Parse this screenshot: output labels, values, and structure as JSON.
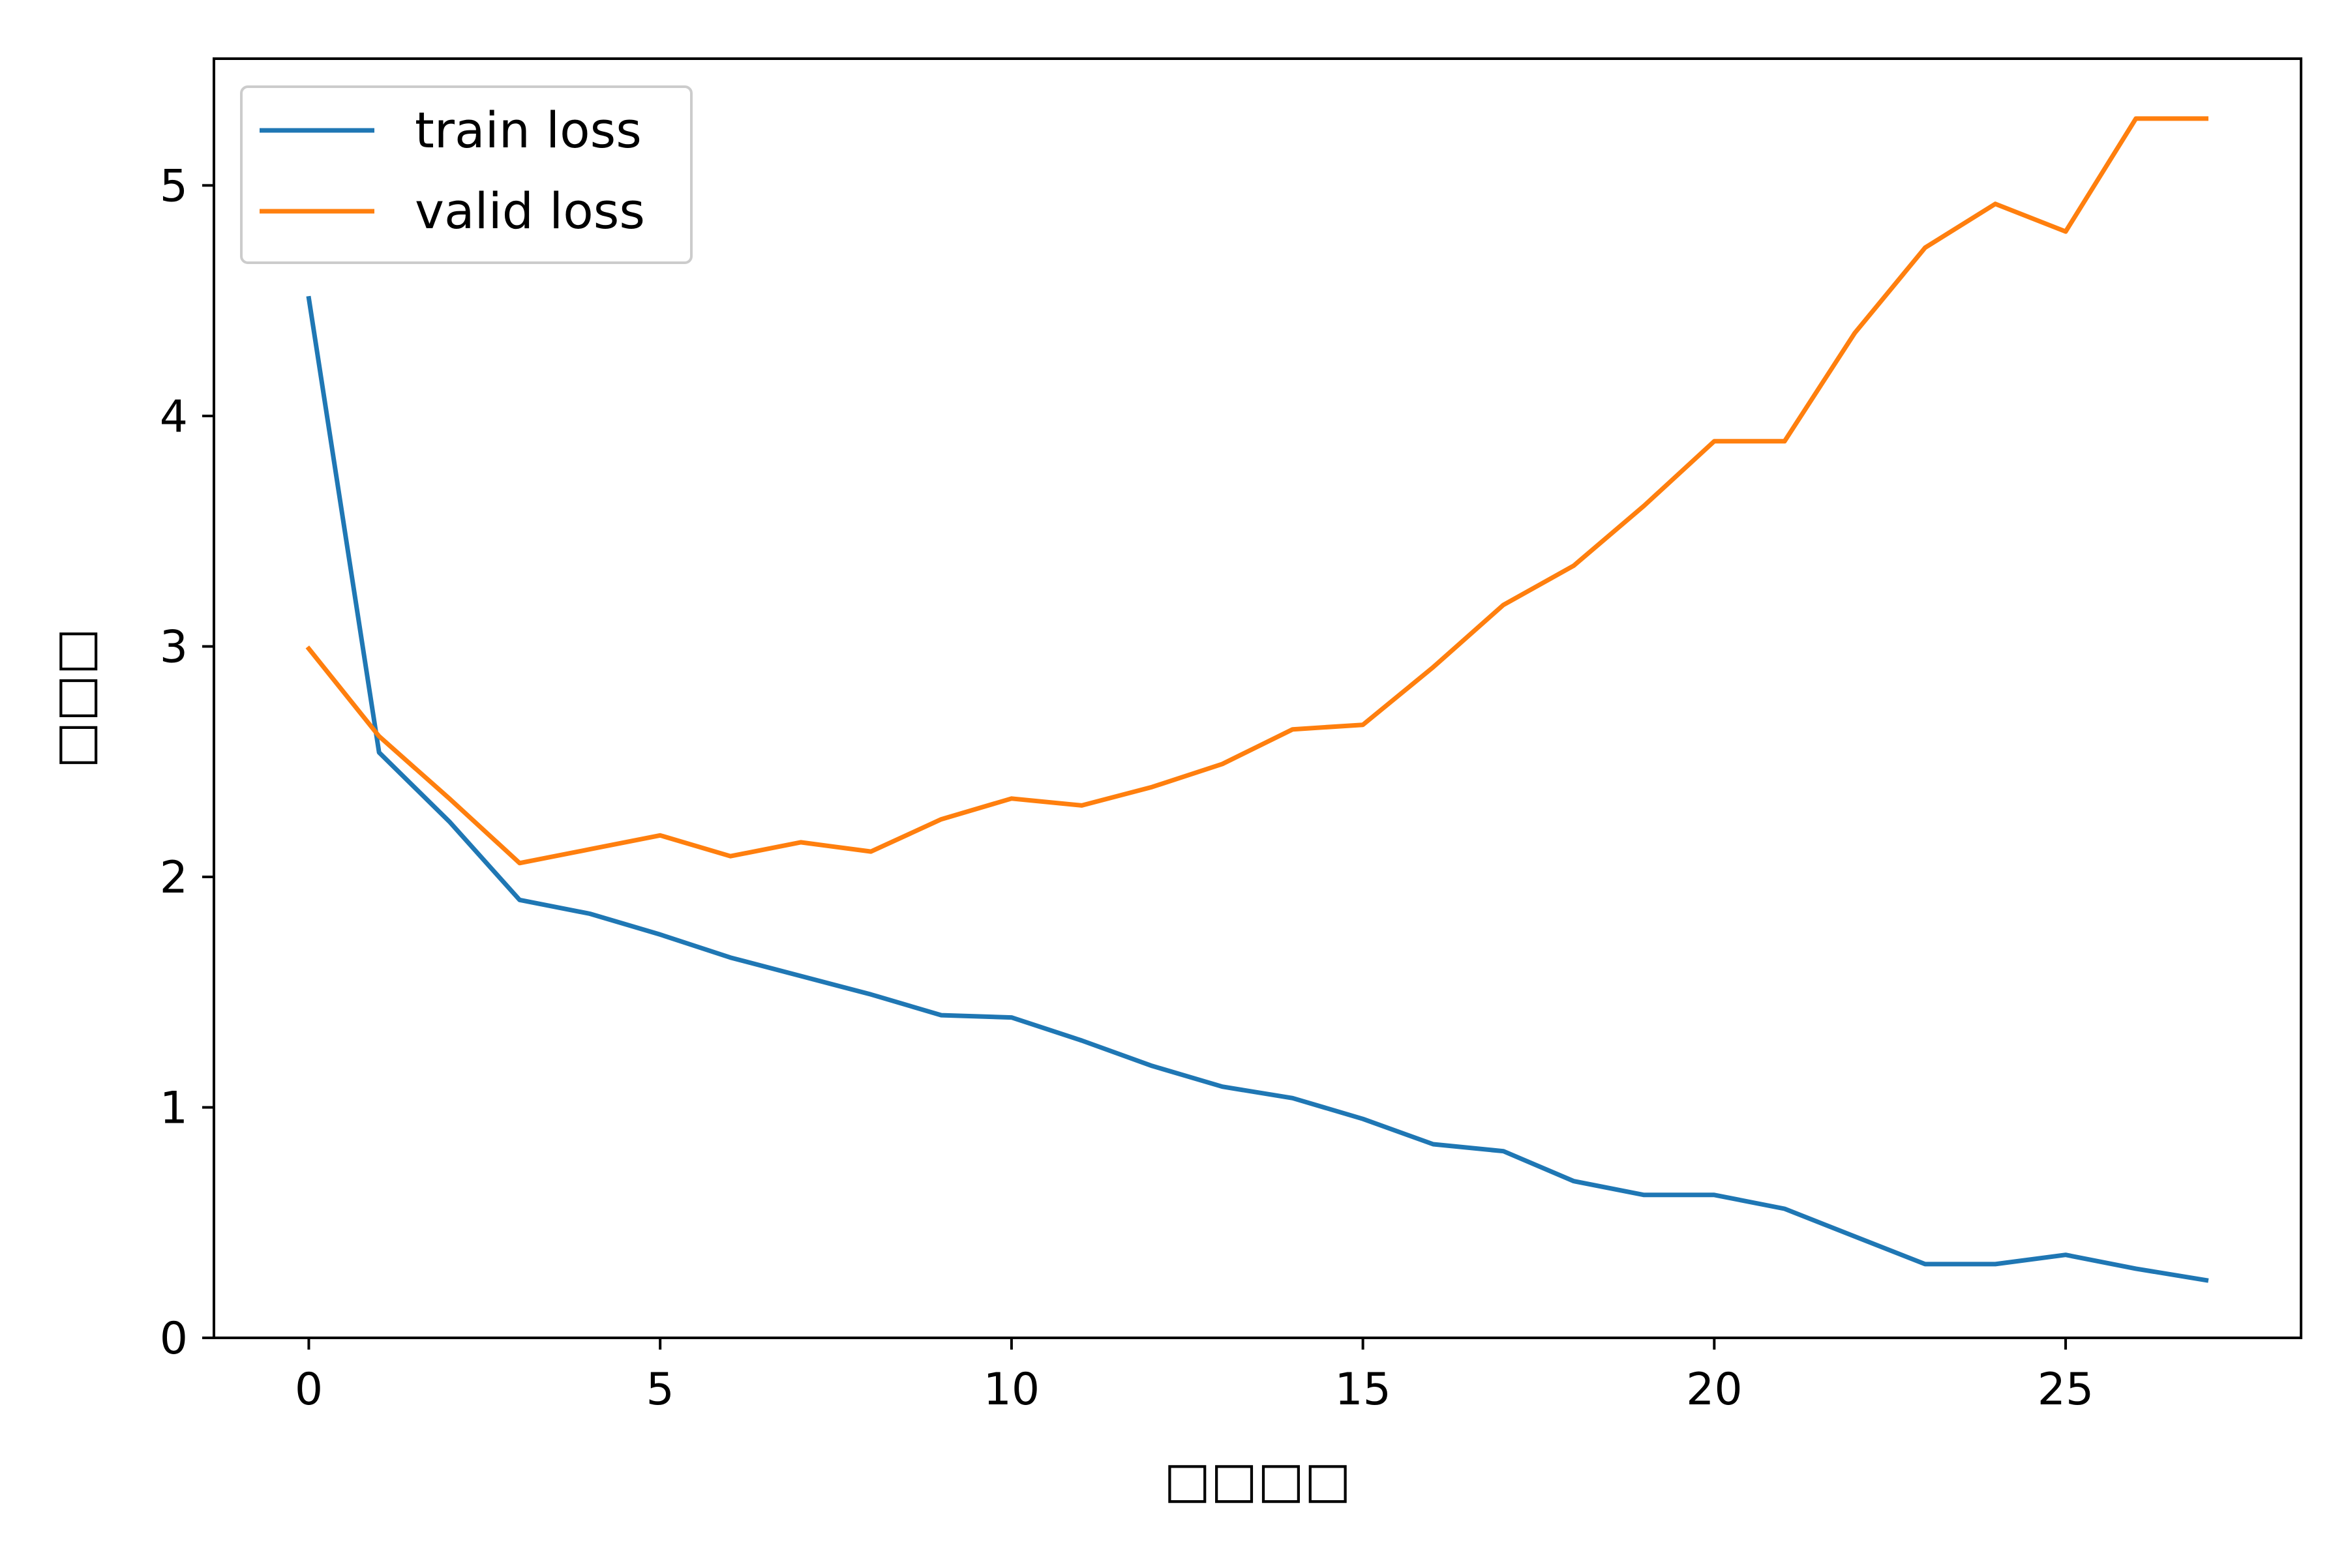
{
  "chart_data": {
    "type": "line",
    "title": "",
    "xlabel": "□□□□",
    "ylabel": "□□□",
    "xlim": [
      -1.35,
      28.35
    ],
    "ylim": [
      0,
      5.55
    ],
    "xticks": [
      0,
      5,
      10,
      15,
      20,
      25
    ],
    "yticks": [
      0,
      1,
      2,
      3,
      4,
      5
    ],
    "grid": false,
    "legend_position": "upper-left",
    "x": [
      0,
      1,
      2,
      3,
      4,
      5,
      6,
      7,
      8,
      9,
      10,
      11,
      12,
      13,
      14,
      15,
      16,
      17,
      18,
      19,
      20,
      21,
      22,
      23,
      24,
      25,
      26,
      27
    ],
    "series": [
      {
        "name": "train loss",
        "color": "#1f77b4",
        "values": [
          4.51,
          2.54,
          2.24,
          1.9,
          1.84,
          1.75,
          1.65,
          1.57,
          1.49,
          1.4,
          1.39,
          1.29,
          1.18,
          1.09,
          1.04,
          0.95,
          0.84,
          0.81,
          0.68,
          0.62,
          0.62,
          0.56,
          0.44,
          0.32,
          0.32,
          0.36,
          0.3,
          0.25
        ]
      },
      {
        "name": "valid loss",
        "color": "#ff7f0e",
        "values": [
          2.99,
          2.61,
          2.34,
          2.06,
          2.12,
          2.18,
          2.09,
          2.15,
          2.11,
          2.25,
          2.34,
          2.31,
          2.39,
          2.49,
          2.64,
          2.66,
          2.91,
          3.18,
          3.35,
          3.61,
          3.89,
          3.89,
          4.36,
          4.73,
          4.92,
          4.8,
          5.29,
          5.29
        ]
      }
    ]
  }
}
